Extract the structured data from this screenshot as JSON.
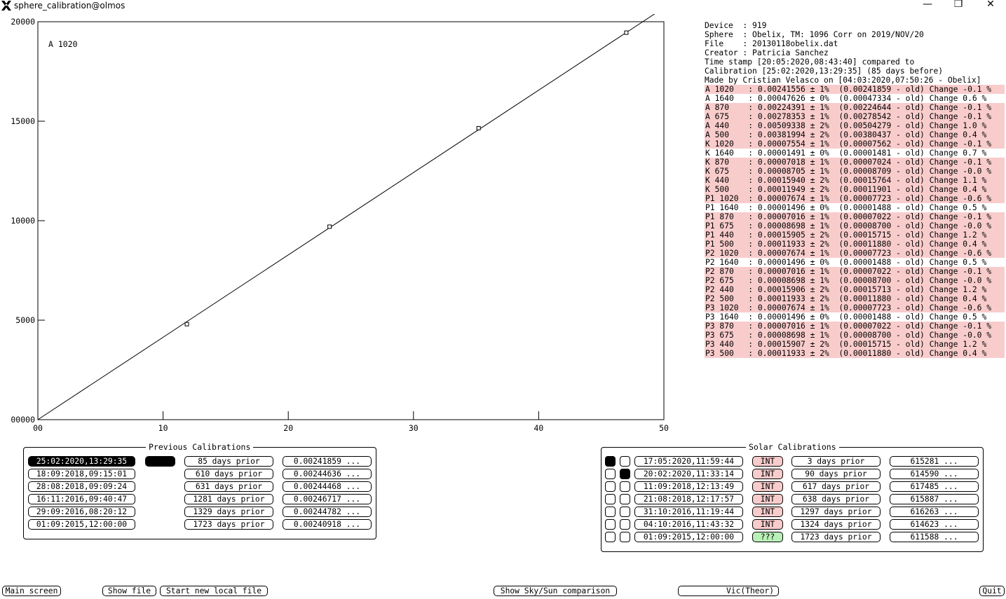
{
  "window": {
    "title": "sphere_calibration@olmos",
    "minimize_glyph": "—",
    "maximize_glyph": "❐",
    "close_glyph": "✕"
  },
  "chart_data": {
    "type": "scatter",
    "annotation": "A 1020",
    "xlim": [
      0,
      50
    ],
    "ylim": [
      0,
      20000
    ],
    "x_ticks": [
      0,
      10,
      20,
      30,
      40,
      50
    ],
    "x_tick_labels": [
      "00",
      "10",
      "20",
      "30",
      "40",
      "50"
    ],
    "y_ticks": [
      0,
      5000,
      10000,
      15000,
      20000
    ],
    "y_tick_labels": [
      "00000",
      "5000",
      "10000",
      "15000",
      "20000"
    ],
    "points": [
      {
        "x": 11.9,
        "y": 4800
      },
      {
        "x": 23.3,
        "y": 9700
      },
      {
        "x": 35.2,
        "y": 14650
      },
      {
        "x": 47.0,
        "y": 19450
      }
    ],
    "fit_line": {
      "x": [
        0,
        50
      ],
      "y": [
        0,
        20700
      ]
    },
    "grid": false
  },
  "info": {
    "header_lines": [
      "Device  : 919",
      "Sphere  : Obelix, TM: 1096 Corr on 2019/NOV/20",
      "File    : 20130118obelix.dat",
      "Creator : Patricia Sanchez",
      "Time stamp [20:05:2020,08:43:40] compared to",
      "Calibration [25:02:2020,13:29:35] (85 days before)",
      "Made by Cristian Velasco on [04:03:2020,07:50:26 - Obelix]"
    ],
    "rows": [
      {
        "text": "A 1020   : 0.00241556 ± 1%  (0.00241859 - old) Change -0.1 %",
        "highlight": true
      },
      {
        "text": "A 1640   : 0.00047626 ± 0%  (0.00047334 - old) Change 0.6 %",
        "highlight": false
      },
      {
        "text": "A 870    : 0.00224391 ± 1%  (0.00224644 - old) Change -0.1 %",
        "highlight": true
      },
      {
        "text": "A 675    : 0.00278353 ± 1%  (0.00278542 - old) Change -0.1 %",
        "highlight": true
      },
      {
        "text": "A 440    : 0.00509338 ± 2%  (0.00504279 - old) Change 1.0 %",
        "highlight": true
      },
      {
        "text": "A 500    : 0.00381994 ± 2%  (0.00380437 - old) Change 0.4 %",
        "highlight": true
      },
      {
        "text": "K 1020   : 0.00007554 ± 1%  (0.00007562 - old) Change -0.1 %",
        "highlight": true
      },
      {
        "text": "K 1640   : 0.00001491 ± 0%  (0.00001481 - old) Change 0.7 %",
        "highlight": false
      },
      {
        "text": "K 870    : 0.00007018 ± 1%  (0.00007024 - old) Change -0.1 %",
        "highlight": true
      },
      {
        "text": "K 675    : 0.00008705 ± 1%  (0.00008709 - old) Change -0.0 %",
        "highlight": true
      },
      {
        "text": "K 440    : 0.00015940 ± 2%  (0.00015764 - old) Change 1.1 %",
        "highlight": true
      },
      {
        "text": "K 500    : 0.00011949 ± 2%  (0.00011901 - old) Change 0.4 %",
        "highlight": true
      },
      {
        "text": "P1 1020  : 0.00007674 ± 1%  (0.00007723 - old) Change -0.6 %",
        "highlight": true
      },
      {
        "text": "P1 1640  : 0.00001496 ± 0%  (0.00001488 - old) Change 0.5 %",
        "highlight": false
      },
      {
        "text": "P1 870   : 0.00007016 ± 1%  (0.00007022 - old) Change -0.1 %",
        "highlight": true
      },
      {
        "text": "P1 675   : 0.00008698 ± 1%  (0.00008700 - old) Change -0.0 %",
        "highlight": true
      },
      {
        "text": "P1 440   : 0.00015905 ± 2%  (0.00015715 - old) Change 1.2 %",
        "highlight": true
      },
      {
        "text": "P1 500   : 0.00011933 ± 2%  (0.00011880 - old) Change 0.4 %",
        "highlight": true
      },
      {
        "text": "P2 1020  : 0.00007674 ± 1%  (0.00007723 - old) Change -0.6 %",
        "highlight": true
      },
      {
        "text": "P2 1640  : 0.00001496 ± 0%  (0.00001488 - old) Change 0.5 %",
        "highlight": false
      },
      {
        "text": "P2 870   : 0.00007016 ± 1%  (0.00007022 - old) Change -0.1 %",
        "highlight": true
      },
      {
        "text": "P2 675   : 0.00008698 ± 1%  (0.00008700 - old) Change -0.0 %",
        "highlight": true
      },
      {
        "text": "P2 440   : 0.00015906 ± 2%  (0.00015713 - old) Change 1.2 %",
        "highlight": true
      },
      {
        "text": "P2 500   : 0.00011933 ± 2%  (0.00011880 - old) Change 0.4 %",
        "highlight": true
      },
      {
        "text": "P3 1020  : 0.00007674 ± 1%  (0.00007723 - old) Change -0.6 %",
        "highlight": true
      },
      {
        "text": "P3 1640  : 0.00001496 ± 0%  (0.00001488 - old) Change 0.5 %",
        "highlight": false
      },
      {
        "text": "P3 870   : 0.00007016 ± 1%  (0.00007022 - old) Change -0.1 %",
        "highlight": true
      },
      {
        "text": "P3 675   : 0.00008698 ± 1%  (0.00008700 - old) Change -0.0 %",
        "highlight": true
      },
      {
        "text": "P3 440   : 0.00015907 ± 2%  (0.00015715 - old) Change 1.2 %",
        "highlight": true
      },
      {
        "text": "P3 500   : 0.00011933 ± 2%  (0.00011880 - old) Change 0.4 %",
        "highlight": true
      }
    ]
  },
  "previous_calibrations": {
    "title": "Previous Calibrations",
    "rows": [
      {
        "date": "25:02:2020,13:29:35",
        "selected": true,
        "indicator": true,
        "days": "85 days prior",
        "value": "0.00241859 ..."
      },
      {
        "date": "18:09:2018,09:15:01",
        "selected": false,
        "indicator": false,
        "days": "610 days prior",
        "value": "0.00244636 ..."
      },
      {
        "date": "28:08:2018,09:09:24",
        "selected": false,
        "indicator": false,
        "days": "631 days prior",
        "value": "0.00244468 ..."
      },
      {
        "date": "16:11:2016,09:40:47",
        "selected": false,
        "indicator": false,
        "days": "1281 days prior",
        "value": "0.00246717 ..."
      },
      {
        "date": "29:09:2016,08:20:12",
        "selected": false,
        "indicator": false,
        "days": "1329 days prior",
        "value": "0.00244782 ..."
      },
      {
        "date": "01:09:2015,12:00:00",
        "selected": false,
        "indicator": false,
        "days": "1723 days prior",
        "value": "0.00240918 ..."
      }
    ]
  },
  "solar_calibrations": {
    "title": "Solar Calibrations",
    "rows": [
      {
        "check1": true,
        "check2": false,
        "date": "17:05:2020,11:59:44",
        "type": "INT",
        "days": "3 days prior",
        "value": "615281 ..."
      },
      {
        "check1": false,
        "check2": true,
        "date": "20:02:2020,11:33:14",
        "type": "INT",
        "days": "90 days prior",
        "value": "614590 ..."
      },
      {
        "check1": false,
        "check2": false,
        "date": "11:09:2018,12:13:49",
        "type": "INT",
        "days": "617 days prior",
        "value": "617485 ..."
      },
      {
        "check1": false,
        "check2": false,
        "date": "21:08:2018,12:17:57",
        "type": "INT",
        "days": "638 days prior",
        "value": "615887 ..."
      },
      {
        "check1": false,
        "check2": false,
        "date": "31:10:2016,11:19:44",
        "type": "INT",
        "days": "1297 days prior",
        "value": "616263 ..."
      },
      {
        "check1": false,
        "check2": false,
        "date": "04:10:2016,11:43:32",
        "type": "INT",
        "days": "1324 days prior",
        "value": "614623 ..."
      },
      {
        "check1": false,
        "check2": false,
        "date": "01:09:2015,12:00:00",
        "type": "???",
        "days": "1723 days prior",
        "value": "611588 ..."
      }
    ]
  },
  "footer": {
    "main_screen": "Main screen",
    "show_file": "Show file",
    "start_new_local_file": "Start new local file",
    "show_sky_sun": "Show Sky/Sun comparison",
    "vic_theor": "Vic(Theor)",
    "quit": "Quit"
  }
}
